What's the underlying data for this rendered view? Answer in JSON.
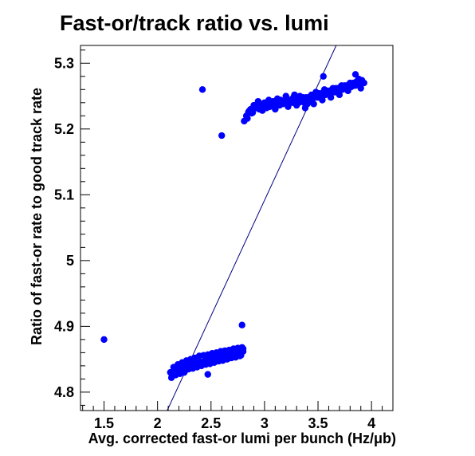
{
  "chart_data": {
    "type": "scatter",
    "title": "Fast-or/track ratio vs. lumi",
    "xlabel": "Avg. corrected fast-or lumi per bunch (Hz/μb)",
    "ylabel": "Ratio of fast-or rate to good track rate",
    "xlim": [
      1.28,
      4.2
    ],
    "ylim": [
      4.772,
      5.327
    ],
    "x_ticks": [
      1.5,
      2,
      2.5,
      3,
      3.5,
      4
    ],
    "x_tick_labels": [
      "1.5",
      "2",
      "2.5",
      "3",
      "3.5",
      "4"
    ],
    "y_ticks": [
      4.8,
      4.9,
      5.0,
      5.1,
      5.2,
      5.3
    ],
    "y_tick_labels": [
      "4.8",
      "4.9",
      "5",
      "5.1",
      "5.2",
      "5.3"
    ],
    "grid": false,
    "colors": {
      "points": "#0000ff",
      "fit_line": "#000080",
      "frame": "#000000"
    },
    "fit_line": {
      "x": [
        2.09,
        3.67
      ],
      "y": [
        4.772,
        5.327
      ]
    },
    "points": {
      "x": [
        1.5,
        2.42,
        2.6,
        2.79,
        2.12,
        2.14,
        2.16,
        2.18,
        2.2,
        2.22,
        2.24,
        2.26,
        2.28,
        2.3,
        2.32,
        2.34,
        2.36,
        2.38,
        2.4,
        2.42,
        2.44,
        2.46,
        2.48,
        2.5,
        2.52,
        2.54,
        2.56,
        2.58,
        2.6,
        2.62,
        2.64,
        2.66,
        2.68,
        2.7,
        2.72,
        2.74,
        2.76,
        2.78,
        2.8,
        2.13,
        2.17,
        2.21,
        2.25,
        2.29,
        2.33,
        2.37,
        2.41,
        2.45,
        2.49,
        2.53,
        2.57,
        2.61,
        2.65,
        2.69,
        2.73,
        2.77,
        2.15,
        2.19,
        2.23,
        2.27,
        2.31,
        2.35,
        2.39,
        2.43,
        2.47,
        2.51,
        2.55,
        2.59,
        2.63,
        2.67,
        2.71,
        2.75,
        2.79,
        2.47,
        2.8,
        2.81,
        2.83,
        2.85,
        2.87,
        2.89,
        2.91,
        2.93,
        2.95,
        2.97,
        2.99,
        3.01,
        3.03,
        3.05,
        3.07,
        3.09,
        3.11,
        3.13,
        3.15,
        3.17,
        3.19,
        3.21,
        3.23,
        3.25,
        3.27,
        3.29,
        3.31,
        3.33,
        3.35,
        3.37,
        3.39,
        3.41,
        3.43,
        3.45,
        3.47,
        3.49,
        3.51,
        3.53,
        3.55,
        3.57,
        3.59,
        3.61,
        3.63,
        3.65,
        3.67,
        3.69,
        3.71,
        3.73,
        3.75,
        3.77,
        3.79,
        3.81,
        3.83,
        3.85,
        3.87,
        3.89,
        3.91,
        3.93,
        2.84,
        2.88,
        2.92,
        2.96,
        3.0,
        3.04,
        3.08,
        3.12,
        3.16,
        3.2,
        3.24,
        3.28,
        3.32,
        3.36,
        3.4,
        3.44,
        3.48,
        3.52,
        3.56,
        3.6,
        3.64,
        3.68,
        3.72,
        3.76,
        3.8,
        3.84,
        3.88,
        2.86,
        2.9,
        2.94,
        2.98,
        3.02,
        3.06,
        3.1,
        3.14,
        3.18,
        3.22,
        3.26,
        3.3,
        3.34,
        3.38,
        3.42,
        3.46,
        3.5,
        3.54,
        3.58,
        3.62,
        3.66,
        3.7,
        3.74,
        3.78,
        3.82,
        3.86,
        3.9,
        3.55,
        3.85
      ],
      "y": [
        4.88,
        5.26,
        5.19,
        4.902,
        4.83,
        4.828,
        4.834,
        4.829,
        4.836,
        4.832,
        4.838,
        4.833,
        4.84,
        4.836,
        4.842,
        4.838,
        4.845,
        4.84,
        4.846,
        4.842,
        4.848,
        4.844,
        4.85,
        4.845,
        4.851,
        4.847,
        4.853,
        4.848,
        4.854,
        4.85,
        4.856,
        4.851,
        4.857,
        4.853,
        4.859,
        4.855,
        4.86,
        4.856,
        4.862,
        4.822,
        4.826,
        4.828,
        4.83,
        4.835,
        4.836,
        4.838,
        4.84,
        4.842,
        4.843,
        4.845,
        4.847,
        4.848,
        4.85,
        4.852,
        4.853,
        4.855,
        4.838,
        4.842,
        4.845,
        4.848,
        4.85,
        4.852,
        4.855,
        4.856,
        4.857,
        4.859,
        4.86,
        4.862,
        4.863,
        4.864,
        4.866,
        4.867,
        4.868,
        4.827,
        4.866,
        5.212,
        5.22,
        5.226,
        5.23,
        5.225,
        5.232,
        5.236,
        5.23,
        5.238,
        5.234,
        5.24,
        5.236,
        5.234,
        5.238,
        5.242,
        5.236,
        5.24,
        5.244,
        5.238,
        5.242,
        5.246,
        5.24,
        5.244,
        5.248,
        5.242,
        5.246,
        5.25,
        5.244,
        5.24,
        5.248,
        5.244,
        5.25,
        5.246,
        5.252,
        5.248,
        5.254,
        5.25,
        5.256,
        5.252,
        5.258,
        5.254,
        5.26,
        5.256,
        5.262,
        5.258,
        5.264,
        5.26,
        5.266,
        5.262,
        5.268,
        5.264,
        5.27,
        5.266,
        5.272,
        5.268,
        5.274,
        5.27,
        5.216,
        5.224,
        5.232,
        5.236,
        5.24,
        5.244,
        5.242,
        5.246,
        5.238,
        5.25,
        5.244,
        5.252,
        5.24,
        5.248,
        5.238,
        5.252,
        5.256,
        5.25,
        5.26,
        5.256,
        5.262,
        5.258,
        5.266,
        5.262,
        5.27,
        5.266,
        5.276,
        5.228,
        5.236,
        5.242,
        5.228,
        5.232,
        5.238,
        5.23,
        5.236,
        5.242,
        5.234,
        5.24,
        5.236,
        5.246,
        5.232,
        5.244,
        5.238,
        5.248,
        5.244,
        5.254,
        5.248,
        5.256,
        5.252,
        5.264,
        5.258,
        5.268,
        5.272,
        5.262,
        5.28,
        5.283
      ]
    }
  }
}
